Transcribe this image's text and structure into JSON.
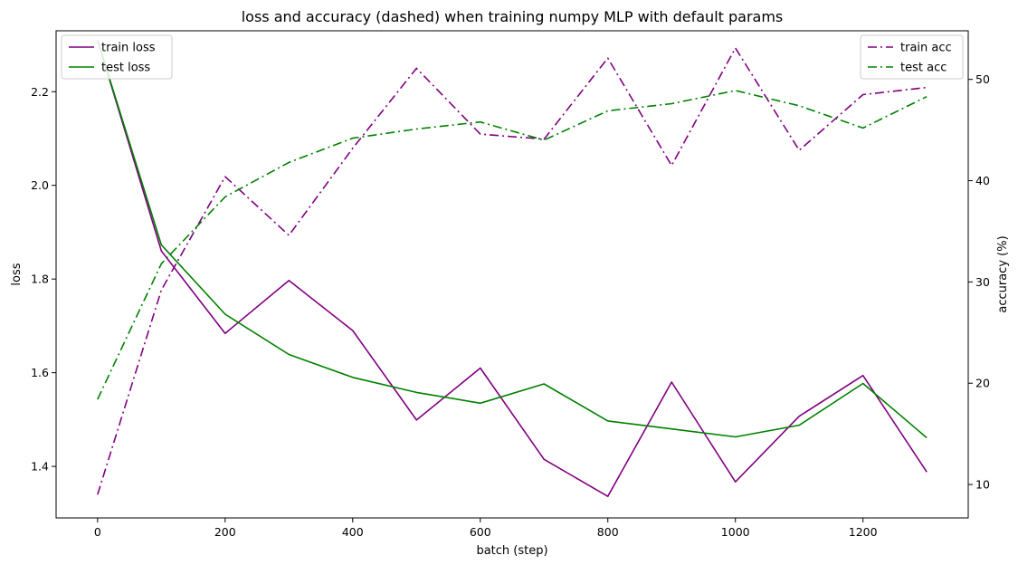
{
  "chart_data": {
    "type": "line",
    "title": "loss and accuracy (dashed) when training numpy MLP with default params",
    "xlabel": "batch (step)",
    "ylabel_left": "loss",
    "ylabel_right": "accuracy (%)",
    "xlim": [
      -65,
      1365
    ],
    "ylim_left": [
      1.29,
      2.33
    ],
    "ylim_right": [
      6.7,
      54.8
    ],
    "x_ticks": [
      0,
      200,
      400,
      600,
      800,
      1000,
      1200
    ],
    "y_ticks_left": [
      1.4,
      1.6,
      1.8,
      2.0,
      2.2
    ],
    "y_ticks_right": [
      10,
      20,
      30,
      40,
      50
    ],
    "x": [
      0,
      100,
      200,
      300,
      400,
      500,
      600,
      700,
      800,
      900,
      1000,
      1100,
      1200,
      1300
    ],
    "grid": false,
    "series": [
      {
        "name": "train loss",
        "axis": "left",
        "style": "solid",
        "color": "#800080",
        "values": [
          2.31,
          1.86,
          1.684,
          1.797,
          1.69,
          1.499,
          1.61,
          1.415,
          1.336,
          1.58,
          1.367,
          1.507,
          1.594,
          1.388
        ]
      },
      {
        "name": "test loss",
        "axis": "left",
        "style": "solid",
        "color": "#008000",
        "values": [
          2.31,
          1.873,
          1.725,
          1.639,
          1.59,
          1.558,
          1.535,
          1.576,
          1.497,
          1.48,
          1.463,
          1.488,
          1.577,
          1.461
        ]
      },
      {
        "name": "train acc",
        "axis": "right",
        "style": "dashdot",
        "color": "#800080",
        "values": [
          9.0,
          29.2,
          40.4,
          34.6,
          43.2,
          51.1,
          44.6,
          44.1,
          52.1,
          41.5,
          53.1,
          43.0,
          48.5,
          49.2
        ]
      },
      {
        "name": "test acc",
        "axis": "right",
        "style": "dashdot",
        "color": "#008000",
        "values": [
          18.4,
          31.8,
          38.4,
          41.8,
          44.2,
          45.1,
          45.8,
          44.0,
          46.9,
          47.6,
          48.9,
          47.4,
          45.2,
          48.3
        ]
      }
    ],
    "legend_left": {
      "placement": "upper-left",
      "entries": [
        "train loss",
        "test loss"
      ]
    },
    "legend_right": {
      "placement": "upper-right",
      "entries": [
        "train acc",
        "test acc"
      ]
    }
  }
}
